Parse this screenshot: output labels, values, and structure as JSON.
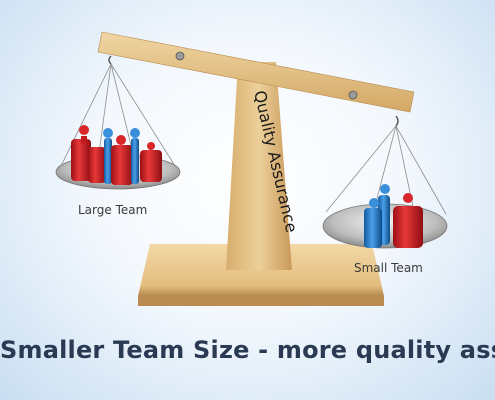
{
  "pillar_text": "Quality Assurance",
  "labels": {
    "large_team": "Large Team",
    "small_team": "Small Team"
  },
  "caption": "Smaller Team Size - more quality assuran",
  "colors": {
    "wood": "#e3bf82",
    "wood_dark": "#c49a5c",
    "red_weight": "#d61f24",
    "blue_weight": "#2a7fd0",
    "pan_metal": "#c8c8c8",
    "caption_text": "#2a3a52"
  }
}
